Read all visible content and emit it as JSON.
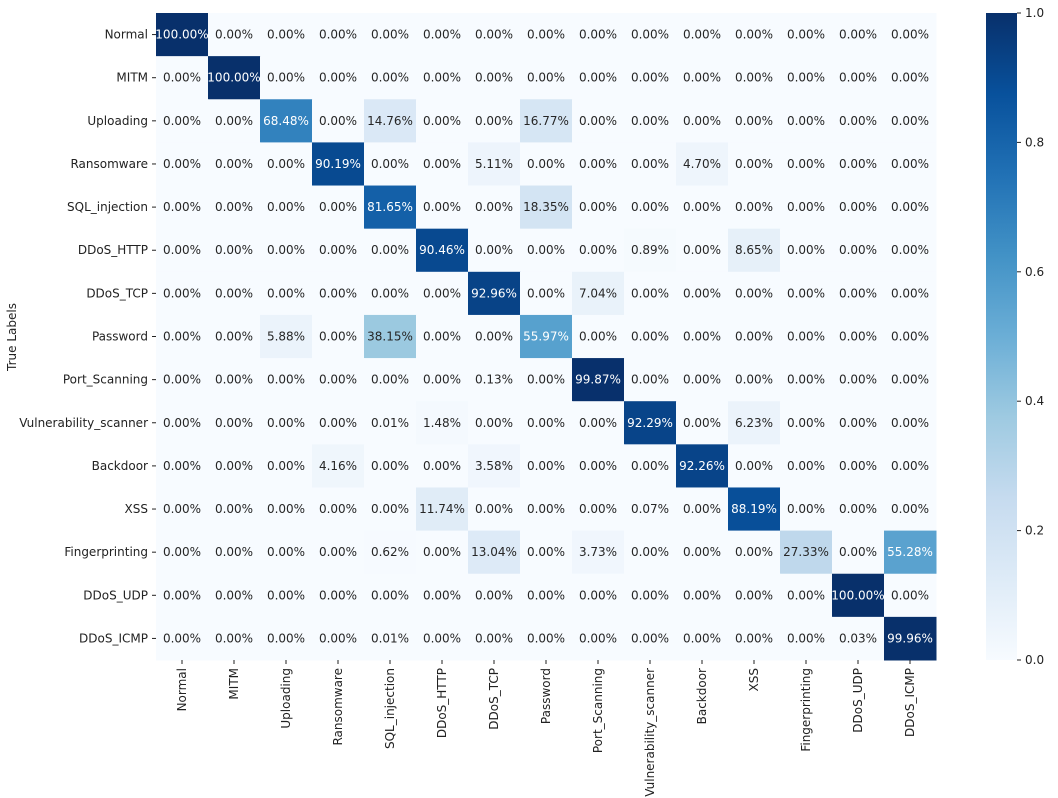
{
  "chart_data": {
    "type": "heatmap",
    "title": "",
    "xlabel": "",
    "ylabel": "True Labels",
    "row_labels": [
      "Normal",
      "MITM",
      "Uploading",
      "Ransomware",
      "SQL_injection",
      "DDoS_HTTP",
      "DDoS_TCP",
      "Password",
      "Port_Scanning",
      "Vulnerability_scanner",
      "Backdoor",
      "XSS",
      "Fingerprinting",
      "DDoS_UDP",
      "DDoS_ICMP"
    ],
    "col_labels": [
      "Normal",
      "MITM",
      "Uploading",
      "Ransomware",
      "SQL_injection",
      "DDoS_HTTP",
      "DDoS_TCP",
      "Password",
      "Port_Scanning",
      "Vulnerability_scanner",
      "Backdoor",
      "XSS",
      "Fingerprinting",
      "DDoS_UDP",
      "DDoS_ICMP"
    ],
    "values": [
      [
        100.0,
        0.0,
        0.0,
        0.0,
        0.0,
        0.0,
        0.0,
        0.0,
        0.0,
        0.0,
        0.0,
        0.0,
        0.0,
        0.0,
        0.0
      ],
      [
        0.0,
        100.0,
        0.0,
        0.0,
        0.0,
        0.0,
        0.0,
        0.0,
        0.0,
        0.0,
        0.0,
        0.0,
        0.0,
        0.0,
        0.0
      ],
      [
        0.0,
        0.0,
        68.48,
        0.0,
        14.76,
        0.0,
        0.0,
        16.77,
        0.0,
        0.0,
        0.0,
        0.0,
        0.0,
        0.0,
        0.0
      ],
      [
        0.0,
        0.0,
        0.0,
        90.19,
        0.0,
        0.0,
        5.11,
        0.0,
        0.0,
        0.0,
        4.7,
        0.0,
        0.0,
        0.0,
        0.0
      ],
      [
        0.0,
        0.0,
        0.0,
        0.0,
        81.65,
        0.0,
        0.0,
        18.35,
        0.0,
        0.0,
        0.0,
        0.0,
        0.0,
        0.0,
        0.0
      ],
      [
        0.0,
        0.0,
        0.0,
        0.0,
        0.0,
        90.46,
        0.0,
        0.0,
        0.0,
        0.89,
        0.0,
        8.65,
        0.0,
        0.0,
        0.0
      ],
      [
        0.0,
        0.0,
        0.0,
        0.0,
        0.0,
        0.0,
        92.96,
        0.0,
        7.04,
        0.0,
        0.0,
        0.0,
        0.0,
        0.0,
        0.0
      ],
      [
        0.0,
        0.0,
        5.88,
        0.0,
        38.15,
        0.0,
        0.0,
        55.97,
        0.0,
        0.0,
        0.0,
        0.0,
        0.0,
        0.0,
        0.0
      ],
      [
        0.0,
        0.0,
        0.0,
        0.0,
        0.0,
        0.0,
        0.13,
        0.0,
        99.87,
        0.0,
        0.0,
        0.0,
        0.0,
        0.0,
        0.0
      ],
      [
        0.0,
        0.0,
        0.0,
        0.0,
        0.01,
        1.48,
        0.0,
        0.0,
        0.0,
        92.29,
        0.0,
        6.23,
        0.0,
        0.0,
        0.0
      ],
      [
        0.0,
        0.0,
        0.0,
        4.16,
        0.0,
        0.0,
        3.58,
        0.0,
        0.0,
        0.0,
        92.26,
        0.0,
        0.0,
        0.0,
        0.0
      ],
      [
        0.0,
        0.0,
        0.0,
        0.0,
        0.0,
        11.74,
        0.0,
        0.0,
        0.0,
        0.07,
        0.0,
        88.19,
        0.0,
        0.0,
        0.0
      ],
      [
        0.0,
        0.0,
        0.0,
        0.0,
        0.62,
        0.0,
        13.04,
        0.0,
        3.73,
        0.0,
        0.0,
        0.0,
        27.33,
        0.0,
        55.28
      ],
      [
        0.0,
        0.0,
        0.0,
        0.0,
        0.0,
        0.0,
        0.0,
        0.0,
        0.0,
        0.0,
        0.0,
        0.0,
        0.0,
        100.0,
        0.0
      ],
      [
        0.0,
        0.0,
        0.0,
        0.0,
        0.01,
        0.0,
        0.0,
        0.0,
        0.0,
        0.0,
        0.0,
        0.0,
        0.0,
        0.03,
        99.96
      ]
    ],
    "value_format": "percent_2dp",
    "colorbar": {
      "colormap": "Blues",
      "range": [
        0.0,
        1.0
      ],
      "ticks": [
        0.0,
        0.2,
        0.4,
        0.6,
        0.8,
        1.0
      ],
      "tick_labels": [
        "0.0",
        "0.2",
        "0.4",
        "0.6",
        "0.8",
        "1.0"
      ]
    },
    "grid": false,
    "colors": {
      "low": "#f7fbff",
      "high": "#08306b",
      "text_dark": "#262626",
      "text_light": "#ffffff"
    }
  }
}
